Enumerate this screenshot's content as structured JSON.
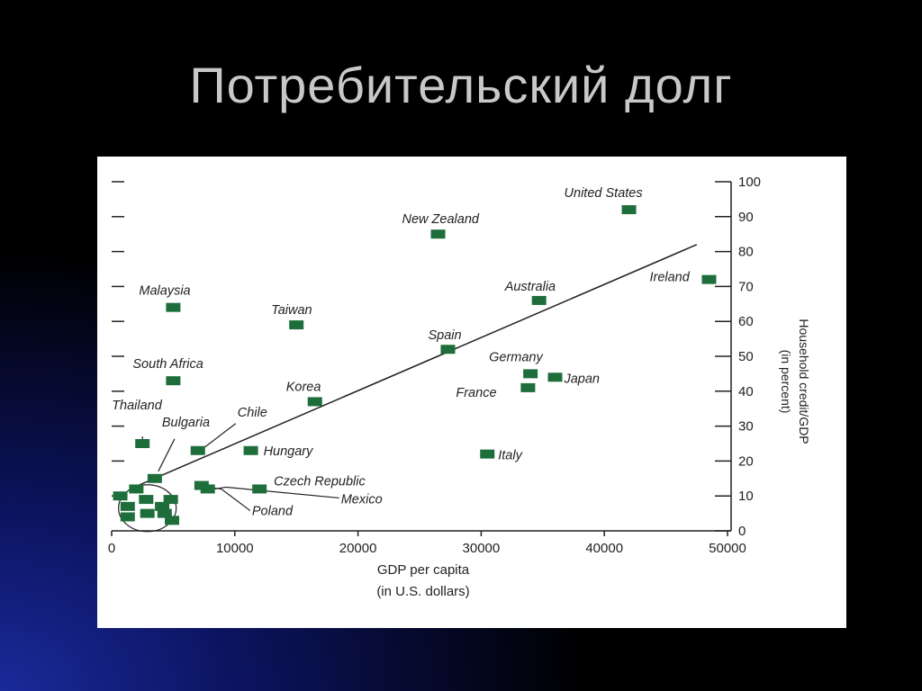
{
  "slide": {
    "title": "Потребительский долг"
  },
  "chart_data": {
    "type": "scatter",
    "xlabel_line1": "GDP per capita",
    "xlabel_line2": "(in U.S. dollars)",
    "ylabel_line1": "Household credit/GDP",
    "ylabel_line2": "(in percent)",
    "xlim": [
      0,
      50000
    ],
    "ylim": [
      0,
      100
    ],
    "x_ticks": [
      0,
      10000,
      20000,
      30000,
      40000,
      50000
    ],
    "y_ticks": [
      0,
      10,
      20,
      30,
      40,
      50,
      60,
      70,
      80,
      90,
      100
    ],
    "marker_color": "#1e6e3c",
    "trend_line": {
      "x": [
        1500,
        47500
      ],
      "y": [
        12,
        82
      ]
    },
    "points": [
      {
        "label": "United States",
        "x": 42000,
        "y": 92
      },
      {
        "label": "New Zealand",
        "x": 26500,
        "y": 85
      },
      {
        "label": "Australia",
        "x": 34700,
        "y": 66
      },
      {
        "label": "Ireland",
        "x": 48500,
        "y": 72
      },
      {
        "label": "Malaysia",
        "x": 5000,
        "y": 64
      },
      {
        "label": "Taiwan",
        "x": 15000,
        "y": 59
      },
      {
        "label": "Spain",
        "x": 27300,
        "y": 52
      },
      {
        "label": "Germany",
        "x": 34000,
        "y": 45
      },
      {
        "label": "Japan",
        "x": 36000,
        "y": 44
      },
      {
        "label": "France",
        "x": 33800,
        "y": 41
      },
      {
        "label": "South Africa",
        "x": 5000,
        "y": 43
      },
      {
        "label": "Korea",
        "x": 16500,
        "y": 37
      },
      {
        "label": "Thailand",
        "x": 2500,
        "y": 25
      },
      {
        "label": "Bulgaria",
        "x": 3500,
        "y": 15
      },
      {
        "label": "Chile",
        "x": 7000,
        "y": 23
      },
      {
        "label": "Hungary",
        "x": 11300,
        "y": 23
      },
      {
        "label": "Italy",
        "x": 30500,
        "y": 22
      },
      {
        "label": "Czech Republic",
        "x": 12000,
        "y": 12
      },
      {
        "label": "Mexico",
        "x": 7800,
        "y": 12
      },
      {
        "label": "Poland",
        "x": 7300,
        "y": 13
      },
      {
        "label": "",
        "x": 700,
        "y": 10
      },
      {
        "label": "",
        "x": 1300,
        "y": 7
      },
      {
        "label": "",
        "x": 2000,
        "y": 12
      },
      {
        "label": "",
        "x": 1300,
        "y": 4
      },
      {
        "label": "",
        "x": 2800,
        "y": 9
      },
      {
        "label": "",
        "x": 2900,
        "y": 5
      },
      {
        "label": "",
        "x": 4100,
        "y": 7
      },
      {
        "label": "",
        "x": 4300,
        "y": 5
      },
      {
        "label": "",
        "x": 4800,
        "y": 9
      },
      {
        "label": "",
        "x": 4900,
        "y": 3
      }
    ]
  }
}
